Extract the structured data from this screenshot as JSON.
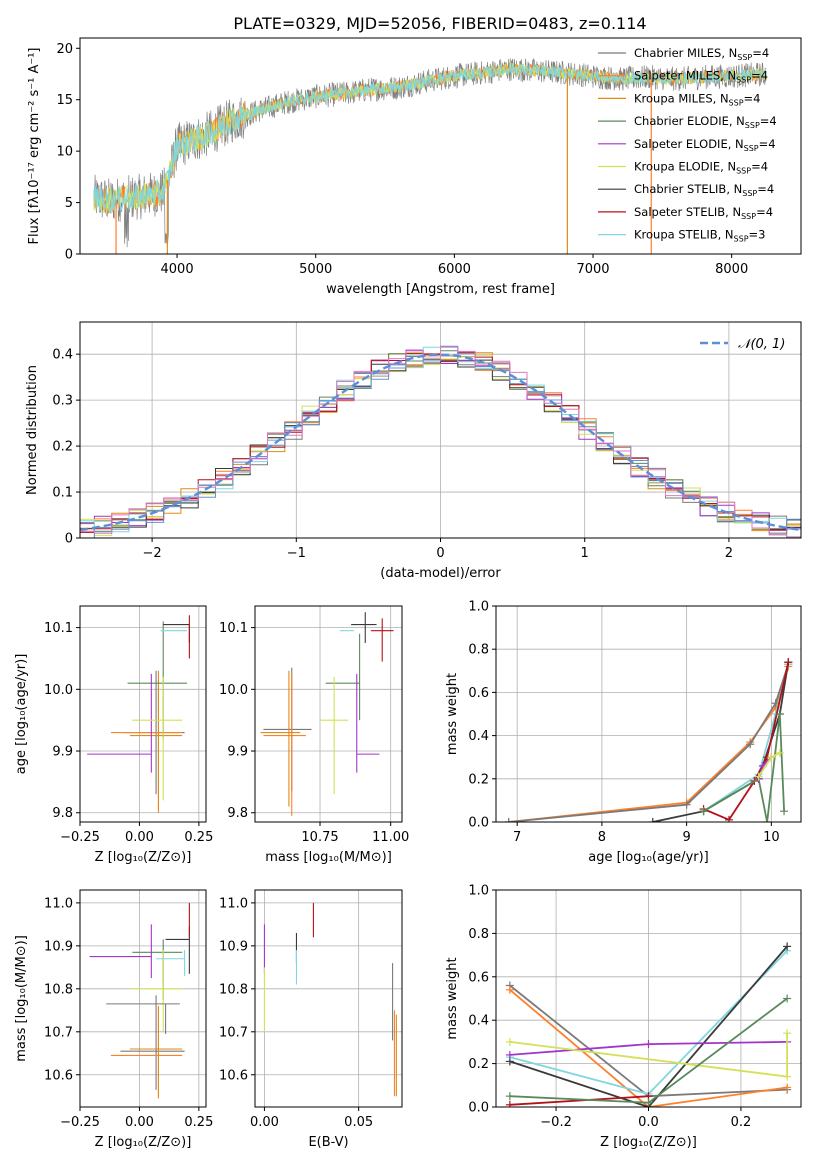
{
  "figure": {
    "title": "PLATE=0329, MJD=52056, FIBERID=0483, z=0.114"
  },
  "colors": {
    "Chabrier MILES": "#7a7a7a",
    "Salpeter MILES": "#ff7f2a",
    "Kroupa MILES": "#e08a17",
    "Chabrier ELODIE": "#5a8a5a",
    "Salpeter ELODIE": "#a235c9",
    "Kroupa ELODIE": "#d4e157",
    "Chabrier STELIB": "#3a3a3a",
    "Salpeter STELIB": "#b3121a",
    "Kroupa STELIB": "#7fd6e0",
    "MILES_bold": "#4a86c8",
    "MILES_orange": "#e8733a",
    "normal": "#5b8fd6"
  },
  "chart_data": [
    {
      "id": "spectrum",
      "type": "line",
      "xlabel": "wavelength [Angstrom, rest frame]",
      "ylabel": "Flux [fλ10⁻¹⁷ erg cm⁻² s⁻¹ A⁻¹]",
      "xlim": [
        3300,
        8500
      ],
      "ylim": [
        0,
        21
      ],
      "xticks": [
        4000,
        5000,
        6000,
        7000,
        8000
      ],
      "yticks": [
        0,
        5,
        10,
        15,
        20
      ],
      "legend_placement": "upper-right",
      "legend": [
        "Chabrier MILES, N_SSP=4",
        "Salpeter MILES, N_SSP=4",
        "Kroupa MILES, N_SSP=4",
        "Chabrier ELODIE, N_SSP=4",
        "Salpeter ELODIE, N_SSP=4",
        "Kroupa ELODIE, N_SSP=4",
        "Chabrier STELIB, N_SSP=4",
        "Salpeter STELIB, N_SSP=4",
        "Kroupa STELIB, N_SSP=3"
      ],
      "continuum": {
        "x": [
          3400,
          3500,
          3700,
          3900,
          3950,
          4000,
          4200,
          4400,
          4600,
          4800,
          5000,
          5200,
          5400,
          5600,
          5800,
          6000,
          6200,
          6400,
          6600,
          6800,
          7000,
          7200,
          7400,
          7600,
          7800,
          8000,
          8250
        ],
        "y": [
          5.5,
          5.2,
          5.5,
          6.0,
          8.0,
          10.5,
          11.5,
          13.0,
          14.0,
          14.8,
          15.3,
          15.6,
          16.0,
          16.2,
          16.8,
          17.3,
          17.6,
          18.0,
          17.8,
          17.6,
          17.3,
          17.0,
          17.2,
          17.0,
          17.2,
          17.3,
          17.5
        ]
      }
    },
    {
      "id": "residuals",
      "type": "histogram",
      "xlabel": "(data-model)/error",
      "ylabel": "Normed distribution",
      "xlim": [
        -2.5,
        2.5
      ],
      "ylim": [
        0,
        0.47
      ],
      "xticks": [
        -2,
        -1,
        0,
        1,
        2
      ],
      "yticks": [
        0.0,
        0.1,
        0.2,
        0.3,
        0.4
      ],
      "legend_placement": "upper-right",
      "legend": [
        "𝒩(0, 1)"
      ],
      "grid": true
    },
    {
      "id": "age_vs_Z",
      "type": "scatter",
      "xlabel": "Z [log₁₀(Z/Z⊙)]",
      "ylabel": "age  [log₁₀(age/yr)]",
      "xlim": [
        -0.25,
        0.28
      ],
      "ylim": [
        9.785,
        10.135
      ],
      "xticks": [
        -0.25,
        0.0,
        0.25
      ],
      "xticklabels": [
        "−0.25",
        "0.00",
        "0.25"
      ],
      "yticks": [
        9.8,
        9.9,
        10.0,
        10.1
      ],
      "yticklabels": [
        "9.8",
        "9.9",
        "10.0",
        "10.1"
      ],
      "grid": true,
      "points": [
        {
          "model": "Chabrier MILES",
          "x": 0.07,
          "y": 9.93,
          "xerr": [
            0.14,
            0.12
          ],
          "yerr": [
            0.1,
            0.1
          ]
        },
        {
          "model": "Salpeter MILES",
          "x": 0.08,
          "y": 9.93,
          "xerr": [
            0.2,
            0.1
          ],
          "yerr": [
            0.13,
            0.1
          ]
        },
        {
          "model": "Kroupa MILES",
          "x": 0.08,
          "y": 9.925,
          "xerr": [
            0.12,
            0.1
          ],
          "yerr": [
            0.12,
            0.09
          ]
        },
        {
          "model": "Chabrier ELODIE",
          "x": 0.1,
          "y": 10.01,
          "xerr": [
            0.15,
            0.1
          ],
          "yerr": [
            0.09,
            0.1
          ]
        },
        {
          "model": "Salpeter ELODIE",
          "x": 0.05,
          "y": 9.895,
          "xerr": [
            0.27,
            0.0
          ],
          "yerr": [
            0.03,
            0.13
          ]
        },
        {
          "model": "Kroupa ELODIE",
          "x": 0.1,
          "y": 9.95,
          "xerr": [
            0.13,
            0.08
          ],
          "yerr": [
            0.13,
            0.07
          ]
        },
        {
          "model": "Chabrier STELIB",
          "x": 0.21,
          "y": 10.105,
          "xerr": [
            0.11,
            0.0
          ],
          "yerr": [
            0.03,
            0.0
          ]
        },
        {
          "model": "Salpeter STELIB",
          "x": 0.21,
          "y": 10.1,
          "xerr": [
            0.0,
            0.0
          ],
          "yerr": [
            0.05,
            0.02
          ]
        },
        {
          "model": "Kroupa STELIB",
          "x": 0.2,
          "y": 10.095,
          "xerr": [
            0.11,
            0.0
          ],
          "yerr": [
            0.0,
            0.0
          ]
        }
      ]
    },
    {
      "id": "age_vs_mass",
      "type": "scatter",
      "xlabel": "mass [log₁₀(M/M⊙)]",
      "xlim": [
        10.52,
        11.04
      ],
      "ylim": [
        9.785,
        10.135
      ],
      "xticks": [
        10.75,
        11.0
      ],
      "xticklabels": [
        "10.75",
        "11.00"
      ],
      "yticks": [
        9.8,
        9.9,
        10.0,
        10.1
      ],
      "yticklabels": [
        "9.8",
        "9.9",
        "10.0",
        "10.1"
      ],
      "grid": true,
      "points": [
        {
          "model": "Chabrier MILES",
          "x": 10.65,
          "y": 9.935,
          "xerr": [
            0.1,
            0.07
          ],
          "yerr": [
            0.1,
            0.1
          ]
        },
        {
          "model": "Salpeter MILES",
          "x": 10.65,
          "y": 9.925,
          "xerr": [
            0.1,
            0.05
          ],
          "yerr": [
            0.13,
            0.1
          ]
        },
        {
          "model": "Kroupa MILES",
          "x": 10.64,
          "y": 9.93,
          "xerr": [
            0.1,
            0.04
          ],
          "yerr": [
            0.12,
            0.1
          ]
        },
        {
          "model": "Chabrier ELODIE",
          "x": 10.89,
          "y": 10.01,
          "xerr": [
            0.12,
            0.0
          ],
          "yerr": [
            0.06,
            0.08
          ]
        },
        {
          "model": "Salpeter ELODIE",
          "x": 10.88,
          "y": 9.895,
          "xerr": [
            0.0,
            0.08
          ],
          "yerr": [
            0.03,
            0.13
          ]
        },
        {
          "model": "Kroupa ELODIE",
          "x": 10.8,
          "y": 9.95,
          "xerr": [
            0.05,
            0.05
          ],
          "yerr": [
            0.12,
            0.07
          ]
        },
        {
          "model": "Chabrier STELIB",
          "x": 10.91,
          "y": 10.105,
          "xerr": [
            0.05,
            0.04
          ],
          "yerr": [
            0.03,
            0.02
          ]
        },
        {
          "model": "Salpeter STELIB",
          "x": 10.97,
          "y": 10.095,
          "xerr": [
            0.04,
            0.04
          ],
          "yerr": [
            0.05,
            0.02
          ]
        },
        {
          "model": "Kroupa STELIB",
          "x": 10.87,
          "y": 10.095,
          "xerr": [
            0.05,
            0.0
          ],
          "yerr": [
            0.0,
            0.0
          ]
        }
      ]
    },
    {
      "id": "weight_vs_age",
      "type": "line",
      "xlabel": "age  [log₁₀(age/yr)]",
      "ylabel": "mass weight",
      "xlim": [
        6.75,
        10.35
      ],
      "ylim": [
        0,
        1.0
      ],
      "xticks": [
        7,
        8,
        9,
        10
      ],
      "yticks": [
        0.0,
        0.2,
        0.4,
        0.6,
        0.8,
        1.0
      ],
      "yticklabels": [
        "0.0",
        "0.2",
        "0.4",
        "0.6",
        "0.8",
        "1.0"
      ],
      "grid": true,
      "series": [
        {
          "model": "Salpeter MILES",
          "x": [
            6.9,
            9.0,
            9.75,
            10.05,
            10.2
          ],
          "y": [
            0.0,
            0.09,
            0.37,
            0.53,
            0.72
          ]
        },
        {
          "model": "Chabrier MILES",
          "x": [
            6.9,
            9.0,
            9.75,
            10.05,
            10.2
          ],
          "y": [
            0.0,
            0.08,
            0.36,
            0.55,
            0.73
          ]
        },
        {
          "model": "Kroupa STELIB",
          "x": [
            9.2,
            9.85,
            10.05,
            10.2
          ],
          "y": [
            0.05,
            0.22,
            0.5,
            0.73
          ]
        },
        {
          "model": "Chabrier STELIB",
          "x": [
            8.6,
            9.2,
            9.85,
            10.1,
            10.2
          ],
          "y": [
            0.0,
            0.05,
            0.2,
            0.5,
            0.74
          ]
        },
        {
          "model": "Salpeter STELIB",
          "x": [
            9.2,
            9.5,
            9.8,
            9.95,
            10.2
          ],
          "y": [
            0.06,
            0.01,
            0.19,
            0.3,
            0.74
          ]
        },
        {
          "model": "Chabrier ELODIE",
          "x": [
            9.2,
            9.85,
            9.95,
            10.1,
            10.15
          ],
          "y": [
            0.05,
            0.2,
            0.0,
            0.5,
            0.05
          ]
        },
        {
          "model": "Salpeter ELODIE",
          "x": [
            9.85,
            9.9,
            10.0
          ],
          "y": [
            0.2,
            0.26,
            0.3
          ]
        },
        {
          "model": "Kroupa ELODIE",
          "x": [
            9.85,
            10.0,
            10.1
          ],
          "y": [
            0.21,
            0.3,
            0.32
          ]
        }
      ]
    },
    {
      "id": "mass_vs_Z",
      "type": "scatter",
      "xlabel": "Z [log₁₀(Z/Z⊙)]",
      "ylabel": "mass [log₁₀(M/M⊙)]",
      "xlim": [
        -0.25,
        0.28
      ],
      "ylim": [
        10.525,
        11.03
      ],
      "xticks": [
        -0.25,
        0.0,
        0.25
      ],
      "xticklabels": [
        "−0.25",
        "0.00",
        "0.25"
      ],
      "yticks": [
        10.6,
        10.7,
        10.8,
        10.9,
        11.0
      ],
      "yticklabels": [
        "10.6",
        "10.7",
        "10.8",
        "10.9",
        "11.0"
      ],
      "grid": true,
      "points": [
        {
          "model": "Chabrier MILES",
          "x": 0.07,
          "y": 10.655,
          "xerr": [
            0.15,
            0.12
          ],
          "yerr": [
            0.09,
            0.13
          ]
        },
        {
          "model": "Salpeter MILES",
          "x": 0.08,
          "y": 10.645,
          "xerr": [
            0.2,
            0.1
          ],
          "yerr": [
            0.1,
            0.11
          ]
        },
        {
          "model": "Kroupa MILES",
          "x": 0.08,
          "y": 10.66,
          "xerr": [
            0.12,
            0.1
          ],
          "yerr": [
            0.11,
            0.1
          ]
        },
        {
          "model": "Chabrier ELODIE",
          "x": 0.1,
          "y": 10.885,
          "xerr": [
            0.13,
            0.08
          ],
          "yerr": [
            0.11,
            0.03
          ]
        },
        {
          "model": "Salpeter ELODIE",
          "x": 0.05,
          "y": 10.875,
          "xerr": [
            0.26,
            0.0
          ],
          "yerr": [
            0.05,
            0.075
          ]
        },
        {
          "model": "Kroupa ELODIE",
          "x": 0.1,
          "y": 10.8,
          "xerr": [
            0.13,
            0.08
          ],
          "yerr": [
            0.1,
            0.09
          ]
        },
        {
          "model": "Chabrier STELIB",
          "x": 0.21,
          "y": 10.915,
          "xerr": [
            0.1,
            0.0
          ],
          "yerr": [
            0.08,
            0.03
          ]
        },
        {
          "model": "Salpeter STELIB",
          "x": 0.21,
          "y": 10.97,
          "xerr": [
            0.0,
            0.0
          ],
          "yerr": [
            0.05,
            0.03
          ]
        },
        {
          "model": "Kroupa STELIB",
          "x": 0.19,
          "y": 10.87,
          "xerr": [
            0.12,
            0.0
          ],
          "yerr": [
            0.04,
            0.02
          ]
        },
        {
          "model": "Chabrier MILES",
          "x": 0.11,
          "y": 10.765,
          "xerr": [
            0.25,
            0.06
          ],
          "yerr": [
            0.07,
            0.0
          ]
        }
      ]
    },
    {
      "id": "mass_vs_EBV",
      "type": "scatter",
      "xlabel": "E(B-V)",
      "xlim": [
        -0.005,
        0.073
      ],
      "ylim": [
        10.525,
        11.03
      ],
      "xticks": [
        0.0,
        0.05
      ],
      "xticklabels": [
        "0.00",
        "0.05"
      ],
      "yticks": [
        10.6,
        10.7,
        10.8,
        10.9,
        11.0
      ],
      "yticklabels": [
        "10.6",
        "10.7",
        "10.8",
        "10.9",
        "11.0"
      ],
      "grid": true,
      "points": [
        {
          "model": "Salpeter ELODIE",
          "x": 0.0,
          "y": 10.895,
          "yerr": [
            0.06,
            0.055
          ]
        },
        {
          "model": "Kroupa ELODIE",
          "x": 0.0,
          "y": 10.8,
          "yerr": [
            0.1,
            0.05
          ]
        },
        {
          "model": "Chabrier STELIB",
          "x": 0.017,
          "y": 10.89,
          "yerr": [
            0.03,
            0.04
          ]
        },
        {
          "model": "Kroupa STELIB",
          "x": 0.017,
          "y": 10.85,
          "yerr": [
            0.04,
            0.04
          ]
        },
        {
          "model": "Salpeter STELIB",
          "x": 0.026,
          "y": 10.955,
          "yerr": [
            0.035,
            0.045
          ]
        },
        {
          "model": "Chabrier MILES",
          "x": 0.068,
          "y": 10.77,
          "yerr": [
            0.09,
            0.09
          ]
        },
        {
          "model": "Salpeter MILES",
          "x": 0.069,
          "y": 10.65,
          "yerr": [
            0.1,
            0.1
          ]
        },
        {
          "model": "Kroupa MILES",
          "x": 0.07,
          "y": 10.64,
          "yerr": [
            0.09,
            0.1
          ]
        }
      ]
    },
    {
      "id": "weight_vs_Z",
      "type": "line",
      "xlabel": "Z [log₁₀(Z/Z⊙)]",
      "ylabel": "mass weight",
      "xlim": [
        -0.33,
        0.33
      ],
      "ylim": [
        0,
        1.0
      ],
      "xticks": [
        -0.2,
        0.0,
        0.2
      ],
      "xticklabels": [
        "−0.2",
        "0.0",
        "0.2"
      ],
      "yticks": [
        0.0,
        0.2,
        0.4,
        0.6,
        0.8,
        1.0
      ],
      "yticklabels": [
        "0.0",
        "0.2",
        "0.4",
        "0.6",
        "0.8",
        "1.0"
      ],
      "grid": true,
      "series": [
        {
          "model": "Chabrier MILES",
          "x": [
            -0.3,
            0.0,
            0.3
          ],
          "y": [
            0.56,
            0.05,
            0.08
          ]
        },
        {
          "model": "Salpeter MILES",
          "x": [
            -0.3,
            0.0,
            0.3
          ],
          "y": [
            0.54,
            0.0,
            0.09
          ]
        },
        {
          "model": "Kroupa STELIB",
          "x": [
            -0.3,
            0.0,
            0.3
          ],
          "y": [
            0.23,
            0.06,
            0.72
          ]
        },
        {
          "model": "Chabrier STELIB",
          "x": [
            -0.3,
            0.0,
            0.3
          ],
          "y": [
            0.21,
            0.0,
            0.74
          ]
        },
        {
          "model": "Salpeter STELIB",
          "x": [
            -0.3,
            0.0
          ],
          "y": [
            0.01,
            0.05
          ]
        },
        {
          "model": "Salpeter ELODIE",
          "x": [
            -0.3,
            0.0,
            0.3
          ],
          "y": [
            0.24,
            0.29,
            0.3
          ]
        },
        {
          "model": "Kroupa ELODIE",
          "x": [
            -0.3,
            0.3,
            0.3
          ],
          "y": [
            0.3,
            0.14,
            0.34
          ]
        },
        {
          "model": "Chabrier ELODIE",
          "x": [
            -0.3,
            0.0,
            0.3
          ],
          "y": [
            0.05,
            0.02,
            0.5
          ]
        }
      ]
    }
  ]
}
